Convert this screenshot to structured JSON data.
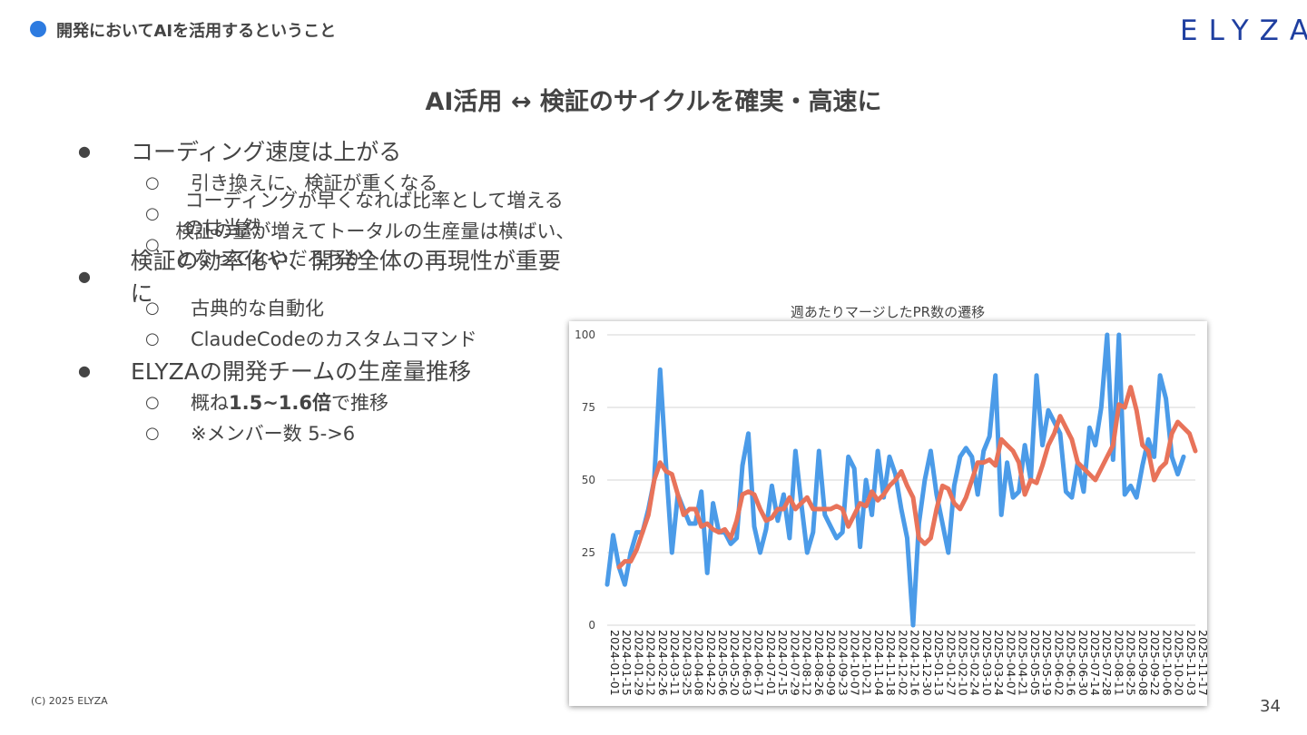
{
  "header": {
    "section": "開発においてAIを活用するということ",
    "logo": "ELYZA"
  },
  "slide": {
    "title": "AI活用 ↔ 検証のサイクルを確実・高速に",
    "bullets": [
      {
        "text": "コーディング速度は上がる",
        "subs": [
          {
            "text": "引き換えに、検証が重くなる"
          },
          {
            "text": "コーディングが早くなれば比率として増えるのは当然"
          },
          {
            "text": "検証の量が増えてトータルの生産量は横ばい、となってないだろうか？"
          }
        ]
      },
      {
        "text": "検証の効率化や、開発全体の再現性が重要に",
        "subs": [
          {
            "text": "古典的な自動化"
          },
          {
            "text": "ClaudeCodeのカスタムコマンド"
          }
        ]
      },
      {
        "text": "ELYZAの開発チームの生産量推移",
        "subs": [
          {
            "pre": "概ね",
            "bold": "1.5~1.6倍",
            "post": "で推移"
          },
          {
            "text": "※メンバー数 5->6"
          }
        ]
      }
    ],
    "bullet_mark": "●",
    "sub_mark": "○"
  },
  "chart_data": {
    "type": "line",
    "title": "週あたりマージしたPR数の遷移",
    "xlabel": "",
    "ylabel": "",
    "ylim": [
      0,
      100
    ],
    "yticks": [
      0,
      25,
      50,
      75,
      100
    ],
    "grid": true,
    "x_tick_labels": [
      "2024-01-01",
      "2024-01-15",
      "2024-01-29",
      "2024-02-12",
      "2024-02-26",
      "2024-03-11",
      "2024-03-25",
      "2024-04-08",
      "2024-04-22",
      "2024-05-06",
      "2024-05-20",
      "2024-06-03",
      "2024-06-17",
      "2024-07-01",
      "2024-07-15",
      "2024-07-29",
      "2024-08-12",
      "2024-08-26",
      "2024-09-09",
      "2024-09-23",
      "2024-10-07",
      "2024-10-21",
      "2024-11-04",
      "2024-11-18",
      "2024-12-02",
      "2024-12-16",
      "2024-12-30",
      "2025-01-13",
      "2025-01-27",
      "2025-02-10",
      "2025-02-24",
      "2025-03-10",
      "2025-03-24",
      "2025-04-07",
      "2025-04-21",
      "2025-05-05",
      "2025-05-19",
      "2025-06-02",
      "2025-06-16",
      "2025-06-30",
      "2025-07-14",
      "2025-07-28",
      "2025-08-11",
      "2025-08-25",
      "2025-09-08",
      "2025-09-22",
      "2025-10-06",
      "2025-10-20",
      "2025-11-03",
      "2025-11-17"
    ],
    "series": [
      {
        "color": "#4b9be8",
        "values": [
          14,
          31,
          20,
          14,
          25,
          32,
          32,
          40,
          50,
          88,
          55,
          25,
          45,
          40,
          35,
          35,
          46,
          18,
          42,
          32,
          32,
          28,
          30,
          55,
          66,
          34,
          25,
          33,
          48,
          36,
          45,
          30,
          60,
          42,
          25,
          32,
          60,
          38,
          34,
          30,
          32,
          58,
          54,
          27,
          50,
          38,
          60,
          44,
          58,
          52,
          40,
          30,
          0,
          35,
          50,
          60,
          45,
          35,
          25,
          48,
          58,
          61,
          58,
          45,
          60,
          65,
          86,
          38,
          56,
          44,
          46,
          62,
          50,
          86,
          62,
          74,
          70,
          66,
          46,
          44,
          56,
          46,
          68,
          62,
          75,
          100,
          57,
          100,
          45,
          48,
          44,
          55,
          64,
          58,
          86,
          78,
          58,
          52,
          58
        ]
      },
      {
        "color": "#e8735a",
        "values": [
          null,
          null,
          20,
          22,
          22,
          26,
          32,
          38,
          50,
          56,
          53,
          52,
          45,
          38,
          40,
          40,
          34,
          35,
          33,
          32,
          33,
          30,
          36,
          45,
          46,
          45,
          40,
          36,
          37,
          40,
          40,
          44,
          40,
          42,
          44,
          40,
          40,
          40,
          40,
          41,
          40,
          34,
          38,
          42,
          41,
          46,
          43,
          45,
          48,
          50,
          53,
          48,
          44,
          30,
          28,
          30,
          40,
          48,
          47,
          42,
          40,
          44,
          50,
          56,
          56,
          57,
          55,
          64,
          62,
          60,
          56,
          45,
          50,
          49,
          55,
          62,
          66,
          72,
          68,
          64,
          56,
          54,
          52,
          50,
          54,
          58,
          62,
          76,
          75,
          82,
          74,
          62,
          60,
          50,
          54,
          56,
          66,
          70,
          68,
          66,
          60
        ]
      }
    ]
  },
  "footer": {
    "copyright": "(C) 2025 ELYZA",
    "page": "34"
  }
}
